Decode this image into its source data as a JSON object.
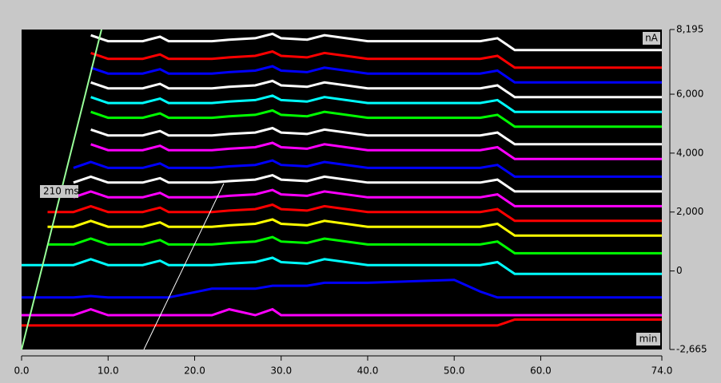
{
  "chart_data": {
    "type": "line",
    "y_label": "nA",
    "x_label": "min",
    "annotation": "210 ms",
    "xlim": [
      0,
      74
    ],
    "ylim": [
      -2665,
      8195
    ],
    "xticks": [
      {
        "value": 0,
        "label": "0.0"
      },
      {
        "value": 10,
        "label": "10.0"
      },
      {
        "value": 20,
        "label": "20.0"
      },
      {
        "value": 30,
        "label": "30.0"
      },
      {
        "value": 40,
        "label": "40.0"
      },
      {
        "value": 50,
        "label": "50.0"
      },
      {
        "value": 60,
        "label": "60.0"
      },
      {
        "value": 74,
        "label": "74.0"
      }
    ],
    "yticks": [
      {
        "value": 8195,
        "label": "8,195"
      },
      {
        "value": 6000,
        "label": "6,000"
      },
      {
        "value": 4000,
        "label": "4,000"
      },
      {
        "value": 2000,
        "label": "2,000"
      },
      0,
      {
        "value": -2665,
        "label": "-2,665"
      }
    ],
    "x": [
      0,
      3,
      6,
      8,
      10,
      14,
      16,
      17,
      22,
      24,
      27,
      29,
      30,
      33,
      35,
      40,
      50,
      53,
      55,
      57,
      60,
      74
    ],
    "series": [
      {
        "color": "#ffffff",
        "values": [
          null,
          null,
          null,
          8000,
          7800,
          7800,
          7950,
          7800,
          7800,
          7850,
          7900,
          8050,
          7900,
          7850,
          8000,
          7800,
          7800,
          7800,
          7900,
          7500,
          7500,
          7500
        ]
      },
      {
        "color": "#ff0000",
        "values": [
          null,
          null,
          null,
          7400,
          7200,
          7200,
          7350,
          7200,
          7200,
          7250,
          7300,
          7450,
          7300,
          7250,
          7400,
          7200,
          7200,
          7200,
          7300,
          6900,
          6900,
          6900
        ]
      },
      {
        "color": "#0000ff",
        "values": [
          null,
          null,
          null,
          6900,
          6700,
          6700,
          6850,
          6700,
          6700,
          6750,
          6800,
          6950,
          6800,
          6750,
          6900,
          6700,
          6700,
          6700,
          6800,
          6400,
          6400,
          6400
        ]
      },
      {
        "color": "#ffffff",
        "values": [
          null,
          null,
          null,
          6400,
          6200,
          6200,
          6350,
          6200,
          6200,
          6250,
          6300,
          6450,
          6300,
          6250,
          6400,
          6200,
          6200,
          6200,
          6300,
          5900,
          5900,
          5900
        ]
      },
      {
        "color": "#00ffff",
        "values": [
          null,
          null,
          null,
          5900,
          5700,
          5700,
          5850,
          5700,
          5700,
          5750,
          5800,
          5950,
          5800,
          5750,
          5900,
          5700,
          5700,
          5700,
          5800,
          5400,
          5400,
          5400
        ]
      },
      {
        "color": "#00ff00",
        "values": [
          null,
          null,
          null,
          5400,
          5200,
          5200,
          5350,
          5200,
          5200,
          5250,
          5300,
          5450,
          5300,
          5250,
          5400,
          5200,
          5200,
          5200,
          5300,
          4900,
          4900,
          4900
        ]
      },
      {
        "color": "#ffffff",
        "values": [
          null,
          null,
          null,
          4800,
          4600,
          4600,
          4750,
          4600,
          4600,
          4650,
          4700,
          4850,
          4700,
          4650,
          4800,
          4600,
          4600,
          4600,
          4700,
          4300,
          4300,
          4300
        ]
      },
      {
        "color": "#ff00ff",
        "values": [
          null,
          null,
          null,
          4300,
          4100,
          4100,
          4250,
          4100,
          4100,
          4150,
          4200,
          4350,
          4200,
          4150,
          4300,
          4100,
          4100,
          4100,
          4200,
          3800,
          3800,
          3800
        ]
      },
      {
        "color": "#0000ff",
        "values": [
          null,
          null,
          3500,
          3700,
          3500,
          3500,
          3650,
          3500,
          3500,
          3550,
          3600,
          3750,
          3600,
          3550,
          3700,
          3500,
          3500,
          3500,
          3600,
          3200,
          3200,
          3200
        ]
      },
      {
        "color": "#ffffff",
        "values": [
          null,
          null,
          3000,
          3200,
          3000,
          3000,
          3150,
          3000,
          3000,
          3050,
          3100,
          3250,
          3100,
          3050,
          3200,
          3000,
          3000,
          3000,
          3100,
          2700,
          2700,
          2700
        ]
      },
      {
        "color": "#ff00ff",
        "values": [
          null,
          null,
          2500,
          2700,
          2500,
          2500,
          2650,
          2500,
          2500,
          2550,
          2600,
          2750,
          2600,
          2550,
          2700,
          2500,
          2500,
          2500,
          2600,
          2200,
          2200,
          2200
        ]
      },
      {
        "color": "#ff0000",
        "values": [
          null,
          2000,
          2000,
          2200,
          2000,
          2000,
          2150,
          2000,
          2000,
          2050,
          2100,
          2250,
          2100,
          2050,
          2200,
          2000,
          2000,
          2000,
          2100,
          1700,
          1700,
          1700
        ]
      },
      {
        "color": "#ffff00",
        "values": [
          null,
          1500,
          1500,
          1700,
          1500,
          1500,
          1650,
          1500,
          1500,
          1550,
          1600,
          1750,
          1600,
          1550,
          1700,
          1500,
          1500,
          1500,
          1600,
          1200,
          1200,
          1200
        ]
      },
      {
        "color": "#00ff00",
        "values": [
          null,
          900,
          900,
          1100,
          900,
          900,
          1050,
          900,
          900,
          950,
          1000,
          1150,
          1000,
          950,
          1100,
          900,
          900,
          900,
          1000,
          600,
          600,
          600
        ]
      },
      {
        "color": "#00ffff",
        "values": [
          200,
          200,
          200,
          400,
          200,
          200,
          350,
          200,
          200,
          250,
          300,
          450,
          300,
          250,
          400,
          200,
          200,
          200,
          300,
          -100,
          -100,
          -100
        ]
      },
      {
        "color": "#0000ff",
        "values": [
          -900,
          -900,
          -900,
          -850,
          -900,
          -900,
          -900,
          -900,
          -600,
          -600,
          -600,
          -500,
          -500,
          -500,
          -400,
          -400,
          -300,
          -700,
          -900,
          -900,
          -900,
          -900
        ]
      },
      {
        "color": "#ff00ff",
        "values": [
          -1500,
          -1500,
          -1500,
          -1300,
          -1500,
          -1500,
          -1500,
          -1500,
          -1500,
          -1300,
          -1500,
          -1300,
          -1500,
          -1500,
          -1500,
          -1500,
          -1500,
          -1500,
          -1500,
          -1500,
          -1500,
          -1500
        ]
      },
      {
        "color": "#ff0000",
        "values": [
          -1850,
          -1850,
          -1850,
          -1850,
          -1850,
          -1850,
          -1850,
          -1850,
          -1850,
          -1850,
          -1850,
          -1850,
          -1850,
          -1850,
          -1850,
          -1850,
          -1850,
          -1850,
          -1850,
          -1650,
          -1650,
          -1650
        ]
      }
    ]
  }
}
